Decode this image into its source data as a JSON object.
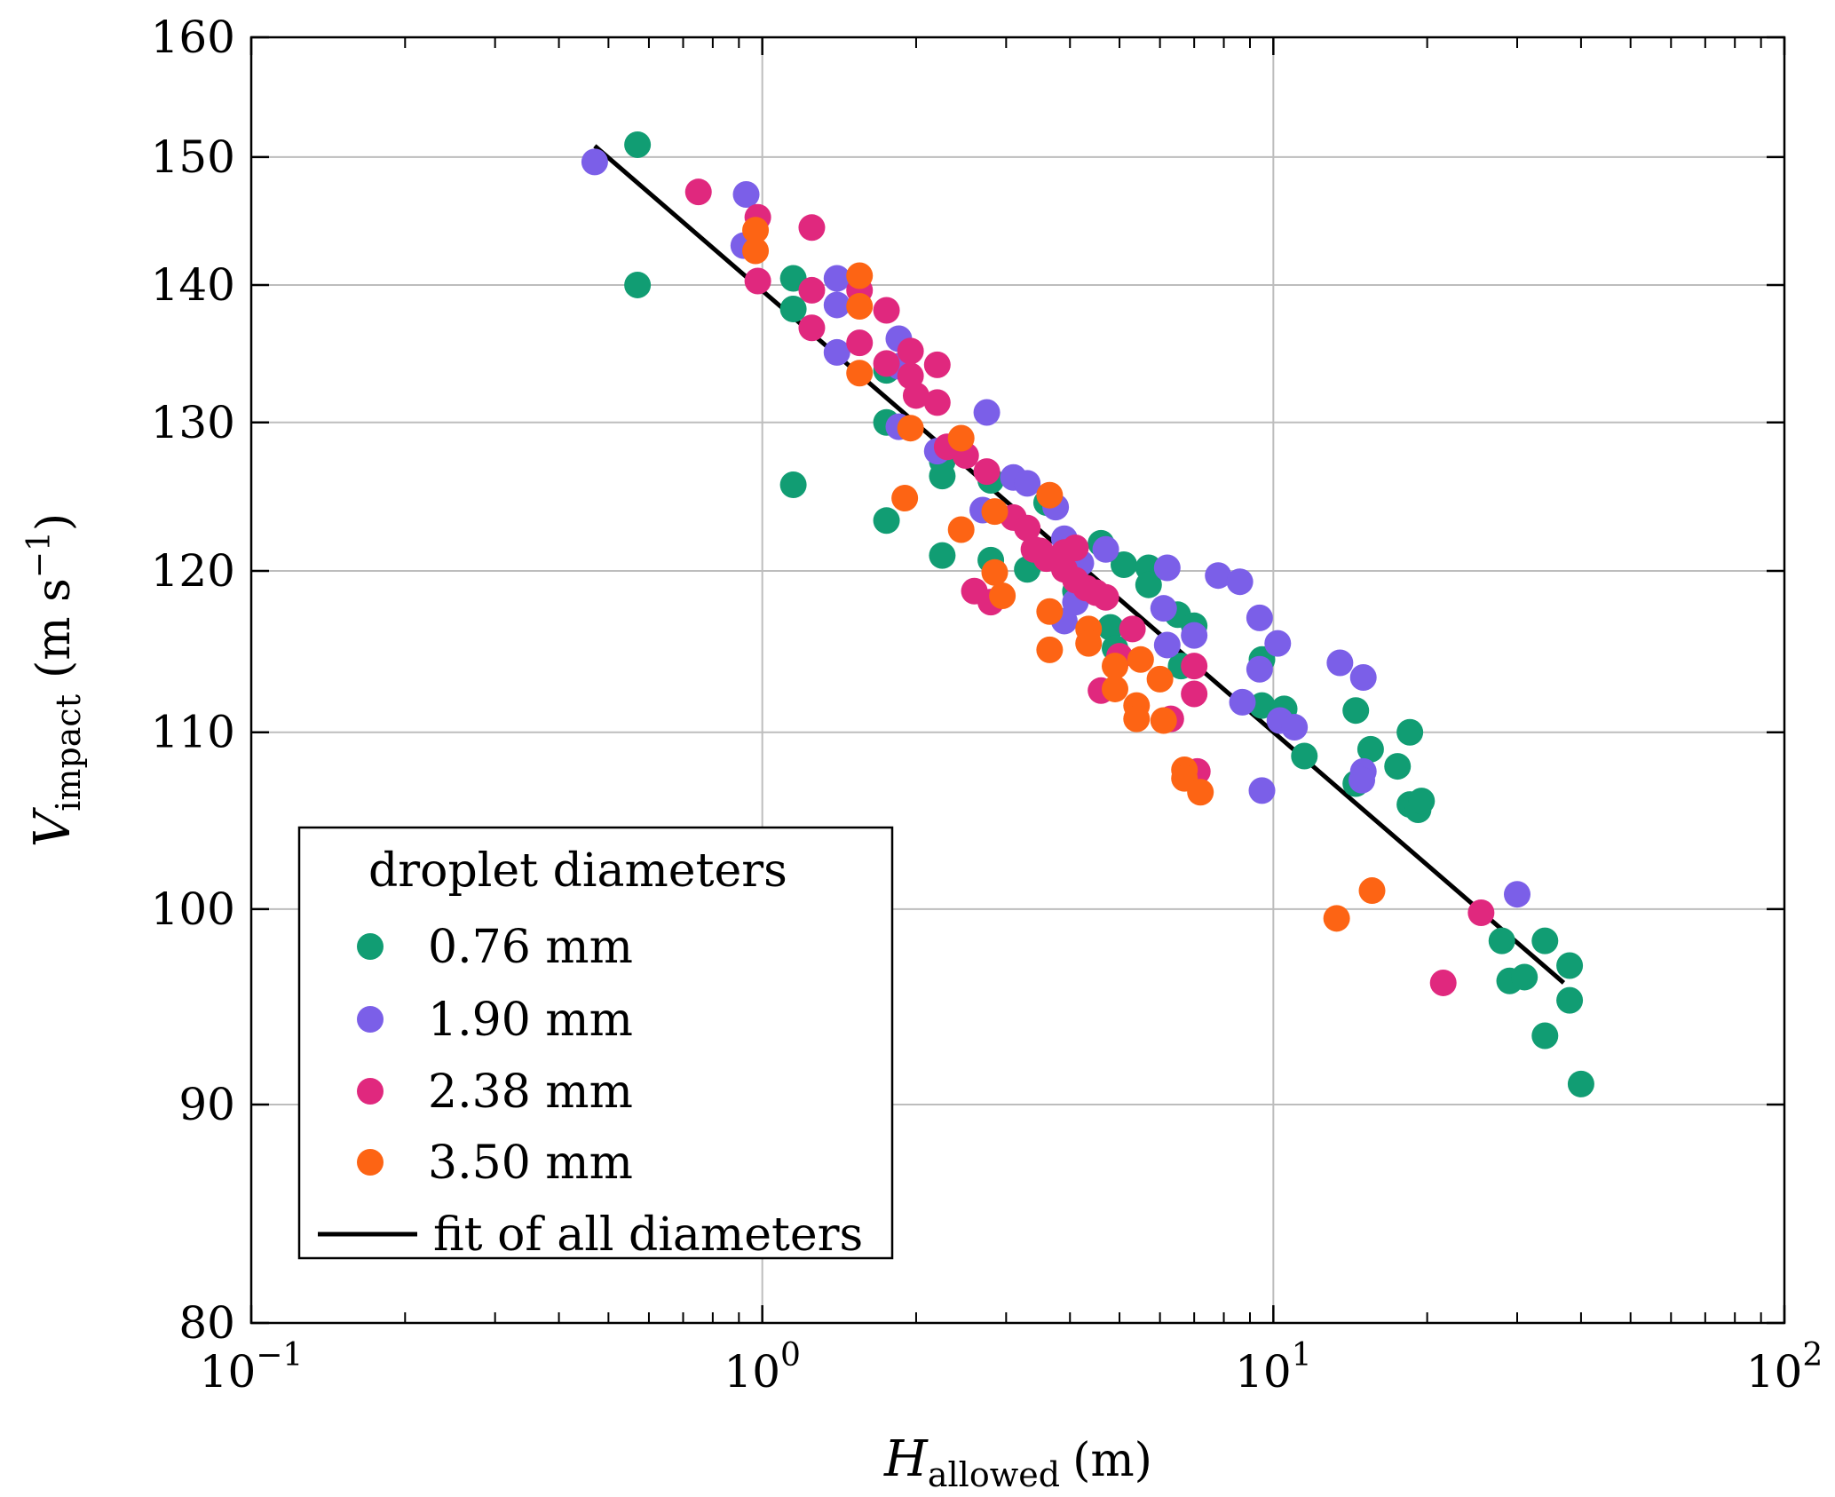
{
  "chart_data": {
    "type": "scatter",
    "x_scale": "log",
    "y_scale": "log",
    "xlim": [
      0.1,
      100
    ],
    "ylim": [
      80,
      160
    ],
    "grid": true,
    "xlabel": {
      "var": "H",
      "sub": "allowed",
      "unit": "(m)"
    },
    "ylabel": {
      "var": "V",
      "sub": "impact",
      "unit_main": "(m s",
      "unit_sup": "−1",
      "unit_close": ")"
    },
    "x_ticks": [
      {
        "value": 0.1,
        "base": "10",
        "exp": "−1"
      },
      {
        "value": 1,
        "base": "10",
        "exp": "0"
      },
      {
        "value": 10,
        "base": "10",
        "exp": "1"
      },
      {
        "value": 100,
        "base": "10",
        "exp": "2"
      }
    ],
    "y_ticks": [
      {
        "value": 80,
        "label": "80"
      },
      {
        "value": 90,
        "label": "90"
      },
      {
        "value": 100,
        "label": "100"
      },
      {
        "value": 110,
        "label": "110"
      },
      {
        "value": 120,
        "label": "120"
      },
      {
        "value": 130,
        "label": "130"
      },
      {
        "value": 140,
        "label": "140"
      },
      {
        "value": 150,
        "label": "150"
      },
      {
        "value": 160,
        "label": "160"
      }
    ],
    "legend": {
      "title": "droplet diameters",
      "position": "bottom-left"
    },
    "series": [
      {
        "name": "0.76 mm",
        "color": "#119d73",
        "points": [
          [
            0.57,
            151
          ],
          [
            0.57,
            140
          ],
          [
            1.15,
            140.5
          ],
          [
            1.15,
            138.2
          ],
          [
            1.15,
            125.7
          ],
          [
            1.75,
            130
          ],
          [
            1.75,
            133.7
          ],
          [
            1.75,
            123.3
          ],
          [
            2.25,
            127.3
          ],
          [
            2.25,
            126.3
          ],
          [
            2.25,
            121
          ],
          [
            2.8,
            126
          ],
          [
            2.8,
            120.7
          ],
          [
            3.3,
            120.1
          ],
          [
            3.6,
            124.5
          ],
          [
            4.1,
            118.7
          ],
          [
            4.6,
            121.8
          ],
          [
            4.8,
            116.4
          ],
          [
            5.1,
            120.4
          ],
          [
            5.7,
            120.2
          ],
          [
            5.7,
            119.1
          ],
          [
            4.9,
            115.1
          ],
          [
            6.5,
            117.2
          ],
          [
            7.0,
            116.5
          ],
          [
            6.6,
            114
          ],
          [
            9.5,
            114.4
          ],
          [
            9.5,
            111.6
          ],
          [
            10.5,
            111.4
          ],
          [
            11.5,
            108.6
          ],
          [
            14.5,
            111.3
          ],
          [
            14.5,
            107
          ],
          [
            15.5,
            109
          ],
          [
            17.5,
            108
          ],
          [
            18.5,
            110
          ],
          [
            18.5,
            105.8
          ],
          [
            19.2,
            105.5
          ],
          [
            19.5,
            106
          ],
          [
            28,
            98.3
          ],
          [
            29,
            96.2
          ],
          [
            31,
            96.4
          ],
          [
            34,
            98.3
          ],
          [
            34,
            93.4
          ],
          [
            38,
            97
          ],
          [
            38,
            95.2
          ],
          [
            40,
            91
          ]
        ]
      },
      {
        "name": "1.90 mm",
        "color": "#7b5fe8",
        "points": [
          [
            0.47,
            149.6
          ],
          [
            0.93,
            147
          ],
          [
            0.92,
            143
          ],
          [
            1.4,
            140.5
          ],
          [
            1.4,
            138.5
          ],
          [
            1.4,
            135
          ],
          [
            1.85,
            136
          ],
          [
            1.85,
            134
          ],
          [
            1.85,
            129.7
          ],
          [
            2.2,
            128
          ],
          [
            2.75,
            130.7
          ],
          [
            2.7,
            124
          ],
          [
            3.1,
            126.2
          ],
          [
            3.3,
            125.8
          ],
          [
            3.75,
            124.2
          ],
          [
            3.9,
            122.1
          ],
          [
            4.2,
            120.5
          ],
          [
            3.9,
            116.8
          ],
          [
            4.1,
            118
          ],
          [
            4.7,
            121.4
          ],
          [
            6.2,
            120.2
          ],
          [
            6.1,
            117.6
          ],
          [
            6.2,
            115.3
          ],
          [
            7.0,
            115.9
          ],
          [
            7.8,
            119.7
          ],
          [
            8.6,
            119.3
          ],
          [
            8.7,
            111.8
          ],
          [
            9.4,
            117
          ],
          [
            9.4,
            113.8
          ],
          [
            9.5,
            106.6
          ],
          [
            10.2,
            115.4
          ],
          [
            10.3,
            110.7
          ],
          [
            11.0,
            110.3
          ],
          [
            13.5,
            114.2
          ],
          [
            15,
            113.3
          ],
          [
            15,
            107.7
          ],
          [
            14.9,
            107.2
          ],
          [
            30,
            100.8
          ]
        ]
      },
      {
        "name": "2.38 mm",
        "color": "#e0287e",
        "points": [
          [
            0.75,
            147.2
          ],
          [
            0.98,
            145.2
          ],
          [
            0.98,
            140.3
          ],
          [
            1.25,
            144.4
          ],
          [
            1.25,
            139.6
          ],
          [
            1.25,
            136.8
          ],
          [
            1.55,
            139.6
          ],
          [
            1.55,
            135.7
          ],
          [
            1.75,
            138.1
          ],
          [
            1.75,
            134.2
          ],
          [
            1.95,
            135.1
          ],
          [
            1.95,
            133.3
          ],
          [
            2.0,
            131.9
          ],
          [
            2.2,
            134.1
          ],
          [
            2.2,
            131.4
          ],
          [
            2.3,
            128.3
          ],
          [
            2.5,
            127.7
          ],
          [
            2.6,
            118.7
          ],
          [
            2.75,
            126.6
          ],
          [
            2.8,
            118
          ],
          [
            3.1,
            123.5
          ],
          [
            3.3,
            122.8
          ],
          [
            3.4,
            121.4
          ],
          [
            3.5,
            121.3
          ],
          [
            3.6,
            120.8
          ],
          [
            3.9,
            121.2
          ],
          [
            3.9,
            120.1
          ],
          [
            4.1,
            121.5
          ],
          [
            4.1,
            119.4
          ],
          [
            4.3,
            118.9
          ],
          [
            4.5,
            118.6
          ],
          [
            4.7,
            118.3
          ],
          [
            4.6,
            112.5
          ],
          [
            5.3,
            116.3
          ],
          [
            5.0,
            114.6
          ],
          [
            6.3,
            110.8
          ],
          [
            7.0,
            114
          ],
          [
            7.0,
            112.3
          ],
          [
            7.1,
            107.7
          ],
          [
            21.5,
            96.1
          ],
          [
            25.5,
            99.8
          ]
        ]
      },
      {
        "name": "3.50 mm",
        "color": "#fd6414",
        "points": [
          [
            0.97,
            144.2
          ],
          [
            0.97,
            142.6
          ],
          [
            1.55,
            140.7
          ],
          [
            1.55,
            138.4
          ],
          [
            1.55,
            133.5
          ],
          [
            1.95,
            129.6
          ],
          [
            1.9,
            124.8
          ],
          [
            2.45,
            128.9
          ],
          [
            2.45,
            122.7
          ],
          [
            2.85,
            123.9
          ],
          [
            2.85,
            119.9
          ],
          [
            2.95,
            118.4
          ],
          [
            3.65,
            125
          ],
          [
            3.65,
            117.4
          ],
          [
            3.65,
            115
          ],
          [
            4.35,
            116.3
          ],
          [
            4.35,
            115.4
          ],
          [
            4.9,
            114
          ],
          [
            4.9,
            112.6
          ],
          [
            5.4,
            111.6
          ],
          [
            5.4,
            110.8
          ],
          [
            5.5,
            114.4
          ],
          [
            6.0,
            113.2
          ],
          [
            6.1,
            110.7
          ],
          [
            6.7,
            107.8
          ],
          [
            6.7,
            107.3
          ],
          [
            7.2,
            106.5
          ],
          [
            13.3,
            99.5
          ],
          [
            15.6,
            101
          ]
        ]
      }
    ],
    "fit": {
      "name": "fit of all diameters",
      "color": "#000000",
      "points": [
        [
          0.47,
          150.9
        ],
        [
          37,
          96.1
        ]
      ]
    }
  }
}
